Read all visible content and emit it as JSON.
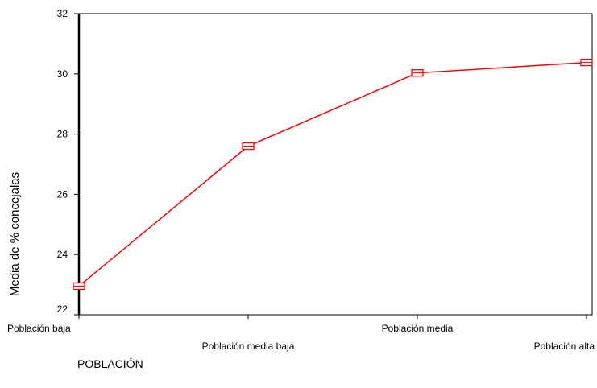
{
  "chart_data": {
    "type": "line",
    "title": "",
    "xlabel": "POBLACIÓN",
    "ylabel": "Media de % concejalas",
    "categories": [
      "Población baja",
      "Población media baja",
      "Población media",
      "Población alta"
    ],
    "series": [
      {
        "values": [
          22.95,
          27.6,
          30.03,
          30.38
        ],
        "color": "#ff0000",
        "marker": "square"
      }
    ],
    "ylim": [
      22,
      32
    ],
    "yticks": [
      22,
      24,
      26,
      28,
      30,
      32
    ],
    "grid": false,
    "legend": "none"
  }
}
